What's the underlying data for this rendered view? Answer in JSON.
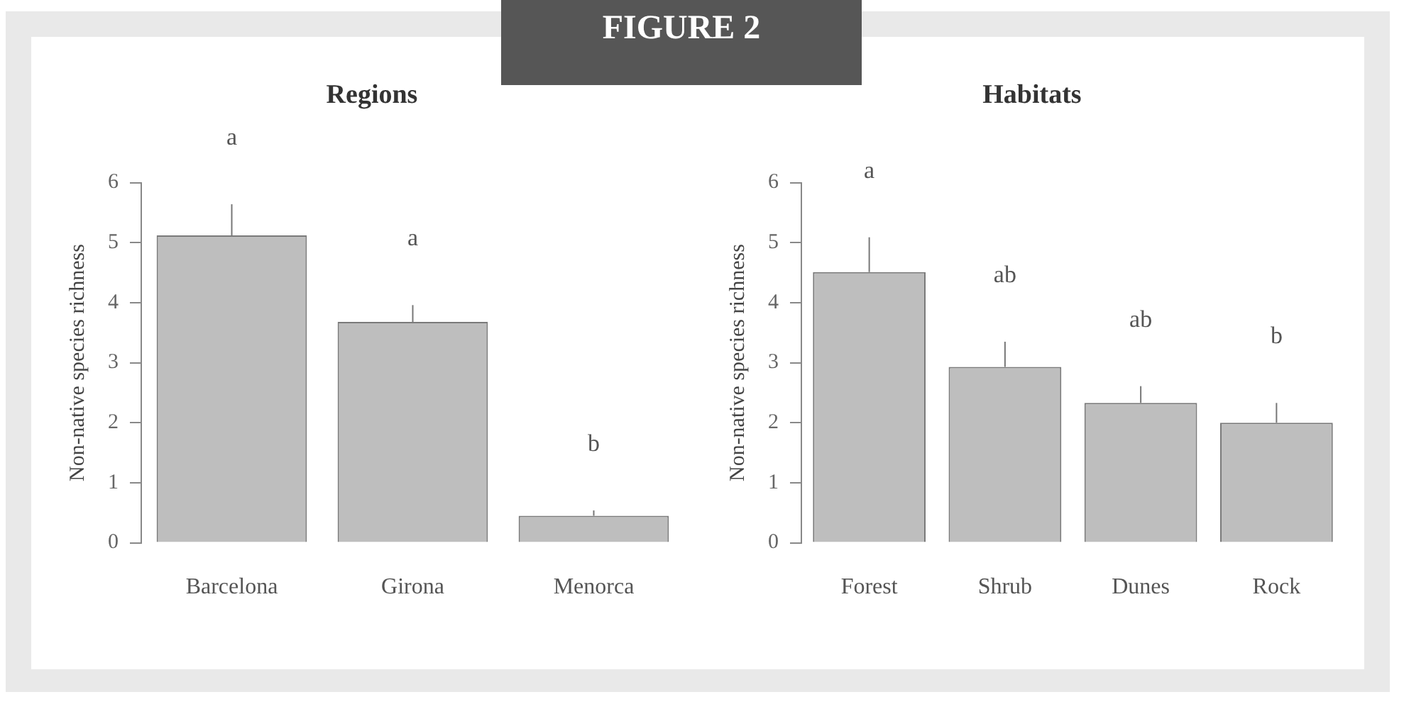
{
  "chart_data": [
    {
      "type": "bar",
      "title": "Regions",
      "ylabel": "Non-native species richness",
      "categories": [
        "Barcelona",
        "Girona",
        "Menorca"
      ],
      "values": [
        5.12,
        3.68,
        0.45
      ],
      "color": "#bebebe",
      "errors": [
        [
          5.12,
          5.64
        ],
        [
          3.68,
          3.96
        ],
        [
          0.45,
          0.54
        ]
      ],
      "ylim": [
        0,
        6
      ],
      "yticks": [
        0,
        1,
        2,
        3,
        4,
        5,
        6
      ],
      "grid": false,
      "annotations": [
        "FIGURE 2",
        "a",
        "a",
        "b"
      ]
    },
    {
      "type": "bar",
      "title": "Habitats",
      "ylabel": "Non-native species richness",
      "categories": [
        "Forest",
        "Shrub",
        "Dunes",
        "Rock"
      ],
      "values": [
        4.51,
        2.93,
        2.33,
        2.0
      ],
      "color": "#bebebe",
      "errors": [
        [
          4.51,
          5.09
        ],
        [
          2.93,
          3.35
        ],
        [
          2.33,
          2.61
        ],
        [
          2.0,
          2.33
        ]
      ],
      "ylim": [
        0,
        6
      ],
      "yticks": [
        0,
        1,
        2,
        3,
        4,
        5,
        6
      ],
      "grid": false,
      "annotations": [
        "a",
        "ab",
        "ab",
        "b"
      ]
    }
  ]
}
